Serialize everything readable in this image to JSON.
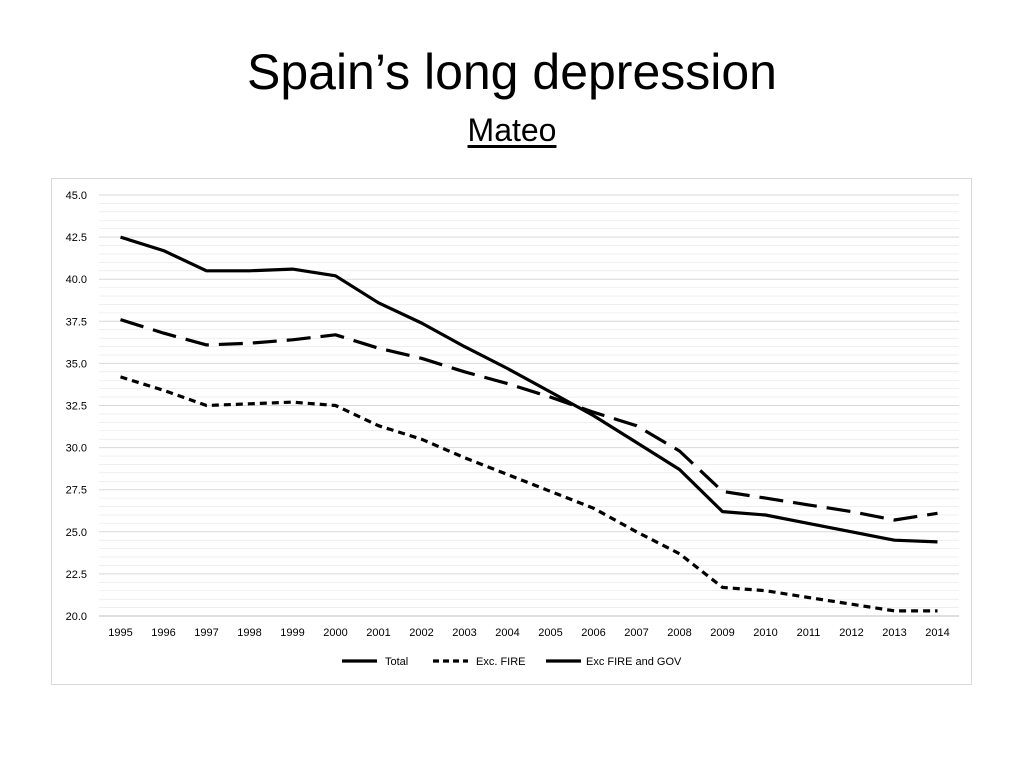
{
  "slide": {
    "title": "Spain’s long depression",
    "subtitle": "Mateo"
  },
  "colors": {
    "line": "#000000",
    "gridline": "#e6e6e6",
    "frame": "#d9d9d9"
  },
  "chart_data": {
    "type": "line",
    "title": "",
    "xlabel": "",
    "ylabel": "",
    "ylim": [
      20.0,
      45.0
    ],
    "yticks": [
      "20.0",
      "22.5",
      "25.0",
      "27.5",
      "30.0",
      "32.5",
      "35.0",
      "37.5",
      "40.0",
      "42.5",
      "45.0"
    ],
    "grid": true,
    "legend_position": "bottom",
    "categories": [
      "1995",
      "1996",
      "1997",
      "1998",
      "1999",
      "2000",
      "2001",
      "2002",
      "2003",
      "2004",
      "2005",
      "2006",
      "2007",
      "2008",
      "2009",
      "2010",
      "2011",
      "2012",
      "2013",
      "2014"
    ],
    "series": [
      {
        "name": "Total",
        "style": "solid",
        "values": [
          42.5,
          41.7,
          40.5,
          40.5,
          40.6,
          40.2,
          38.6,
          37.4,
          36.0,
          34.7,
          33.3,
          31.9,
          30.3,
          28.7,
          26.2,
          26.0,
          25.5,
          25.0,
          24.5,
          24.4
        ]
      },
      {
        "name": "Exc. FIRE",
        "style": "short-dash",
        "values": [
          34.2,
          33.4,
          32.5,
          32.6,
          32.7,
          32.5,
          31.3,
          30.5,
          29.4,
          28.4,
          27.4,
          26.4,
          25.0,
          23.7,
          21.7,
          21.5,
          21.1,
          20.7,
          20.3,
          20.3
        ]
      },
      {
        "name": "Exc FIRE and GOV",
        "style": "long-dash",
        "values": [
          37.6,
          36.8,
          36.1,
          36.2,
          36.4,
          36.7,
          35.9,
          35.3,
          34.5,
          33.8,
          33.0,
          32.1,
          31.3,
          29.8,
          27.4,
          27.0,
          26.6,
          26.2,
          25.7,
          26.1
        ]
      }
    ]
  }
}
